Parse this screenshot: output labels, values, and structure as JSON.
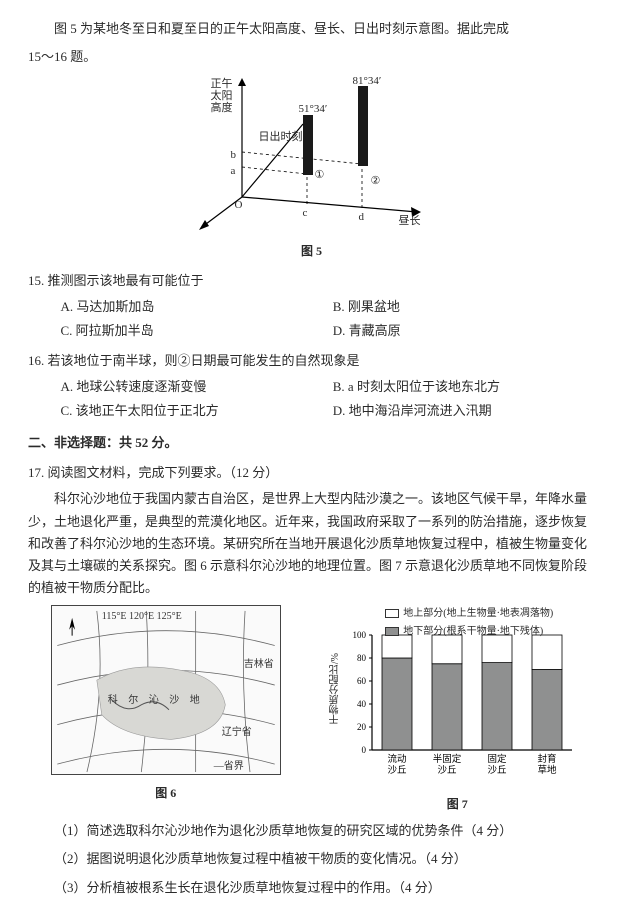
{
  "intro": {
    "line1": "图 5 为某地冬至日和夏至日的正午太阳高度、昼长、日出时刻示意图。据此完成",
    "line2": "15～16 题。"
  },
  "fig5": {
    "caption": "图 5",
    "y_label": "正午\n太阳\n高度",
    "x_label": "昼长",
    "bar_labels": [
      "51°34′",
      "81°34′"
    ],
    "sunrise_label": "日出时刻",
    "axis_marks": {
      "a": "a",
      "b": "b",
      "c": "c",
      "d": "d",
      "one": "①",
      "two": "②",
      "o": "O"
    },
    "bar_colors": [
      "#1a1a1a",
      "#1a1a1a"
    ],
    "bg": "#ffffff",
    "axis_color": "#000000"
  },
  "q15": {
    "stem": "15. 推测图示该地最有可能位于",
    "opts": {
      "A": "A. 马达加斯加岛",
      "B": "B. 刚果盆地",
      "C": "C. 阿拉斯加半岛",
      "D": "D. 青藏高原"
    }
  },
  "q16": {
    "stem": "16. 若该地位于南半球，则②日期最可能发生的自然现象是",
    "opts": {
      "A": "A. 地球公转速度逐渐变慢",
      "B": "B. a 时刻太阳位于该地东北方",
      "C": "C. 该地正午太阳位于正北方",
      "D": "D. 地中海沿岸河流进入汛期"
    }
  },
  "section2": "二、非选择题：共 52 分。",
  "q17": {
    "stem": "17. 阅读图文材料，完成下列要求。（12 分）",
    "para": "科尔沁沙地位于我国内蒙古自治区，是世界上大型内陆沙漠之一。该地区气候干旱，年降水量少，土地退化严重，是典型的荒漠化地区。近年来，我国政府采取了一系列的防治措施，逐步恢复和改善了科尔沁沙地的生态环境。某研究所在当地开展退化沙质草地恢复过程中，植被生物量变化及其与土壤碳的关系探究。图 6 示意科尔沁沙地的地理位置。图 7 示意退化沙质草地不同恢复阶段的植被干物质分配比。",
    "sub": {
      "s1": "（1）简述选取科尔沁沙地作为退化沙质草地恢复的研究区域的优势条件（4 分）",
      "s2": "（2）据图说明退化沙质草地恢复过程中植被干物质的变化情况。（4 分）",
      "s3": "（3）分析植被根系生长在退化沙质草地恢复过程中的作用。（4 分）"
    }
  },
  "fig6": {
    "caption": "图 6",
    "labels": {
      "top_coords": "115°E  120°E  125°E",
      "left_coords": "45°N  42°N",
      "jilin": "吉林省",
      "liaoning": "辽宁省",
      "keerqin": "科 尔 沁 沙 地",
      "river_a": "A",
      "river_b": "B",
      "legend": "—省界"
    },
    "grid_color": "#666666",
    "land_fill": "#f2f2f0",
    "sand_fill": "#d8d8d4"
  },
  "fig7": {
    "caption": "图 7",
    "y_label": "干物质分配比/%",
    "ylim": [
      0,
      100
    ],
    "ytick_step": 20,
    "categories": [
      "流动\n沙丘",
      "半固定\n沙丘",
      "固定\n沙丘",
      "封育\n草地"
    ],
    "above": [
      20,
      25,
      24,
      30
    ],
    "below": [
      80,
      75,
      76,
      70
    ],
    "legend": {
      "above": "地上部分(地上生物量·地表凋落物)",
      "below": "地下部分(根系干物量·地下残体)"
    },
    "colors": {
      "above": "#ffffff",
      "below": "#8f9090",
      "axis": "#000000",
      "grid": "#e0e0e0",
      "border": "#000000"
    },
    "bar_width": 0.6
  }
}
